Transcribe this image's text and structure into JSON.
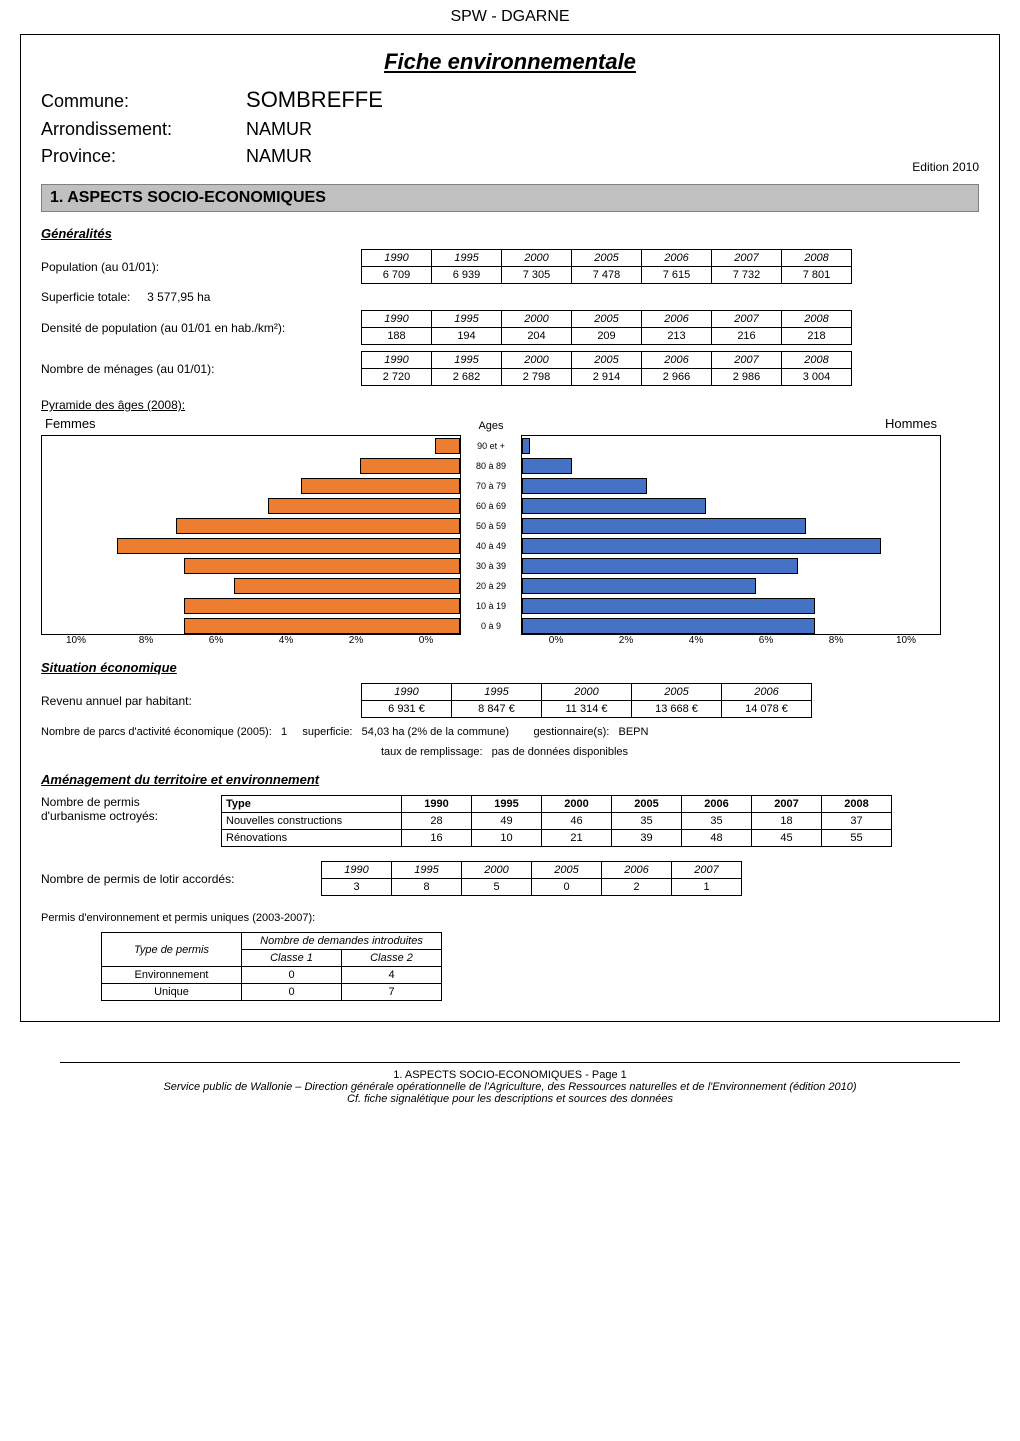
{
  "header": {
    "agency": "SPW - DGARNE",
    "title": "Fiche environnementale",
    "commune_label": "Commune:",
    "commune": "SOMBREFFE",
    "arrondissement_label": "Arrondissement:",
    "arrondissement": "NAMUR",
    "province_label": "Province:",
    "province": "NAMUR",
    "edition": "Edition  2010"
  },
  "section1": {
    "title": "1. ASPECTS SOCIO-ECONOMIQUES",
    "generalites": {
      "heading": "Généralités",
      "population_label": "Population (au 01/01):",
      "population": {
        "years": [
          "1990",
          "1995",
          "2000",
          "2005",
          "2006",
          "2007",
          "2008"
        ],
        "values": [
          "6 709",
          "6 939",
          "7 305",
          "7 478",
          "7 615",
          "7 732",
          "7 801"
        ]
      },
      "superficie_label": "Superficie totale:",
      "superficie_value": "3 577,95 ha",
      "densite_label": "Densité de population (au 01/01 en hab./km²):",
      "densite": {
        "years": [
          "1990",
          "1995",
          "2000",
          "2005",
          "2006",
          "2007",
          "2008"
        ],
        "values": [
          "188",
          "194",
          "204",
          "209",
          "213",
          "216",
          "218"
        ]
      },
      "menages_label": "Nombre de ménages (au 01/01):",
      "menages": {
        "years": [
          "1990",
          "1995",
          "2000",
          "2005",
          "2006",
          "2007",
          "2008"
        ],
        "values": [
          "2 720",
          "2 682",
          "2 798",
          "2 914",
          "2 966",
          "2 986",
          "3 004"
        ]
      },
      "pyramide_label": "Pyramide des âges (2008):",
      "pyramide": {
        "femmes_label": "Femmes",
        "hommes_label": "Hommes",
        "ages_label": "Ages",
        "age_groups": [
          "90 et +",
          "80 à 89",
          "70 à 79",
          "60 à 69",
          "50 à 59",
          "40 à 49",
          "30 à 39",
          "20 à 29",
          "10 à 19",
          "0 à 9"
        ],
        "femmes_pct": [
          0.6,
          2.4,
          3.8,
          4.6,
          6.8,
          8.2,
          6.6,
          5.4,
          6.6,
          6.6
        ],
        "hommes_pct": [
          0.2,
          1.2,
          3.0,
          4.4,
          6.8,
          8.6,
          6.6,
          5.6,
          7.0,
          7.0
        ],
        "axis_ticks": [
          "0%",
          "2%",
          "4%",
          "6%",
          "8%",
          "10%"
        ],
        "axis_ticks_left": [
          "10%",
          "8%",
          "6%",
          "4%",
          "2%",
          "0%"
        ],
        "femmes_color": "#ed7d31",
        "hommes_color": "#4472c4",
        "border_color": "#000000",
        "max_pct": 10
      }
    },
    "situation_eco": {
      "heading": "Situation économique",
      "revenu_label": "Revenu annuel par habitant:",
      "revenu": {
        "years": [
          "1990",
          "1995",
          "2000",
          "2005",
          "2006"
        ],
        "values": [
          "6 931 €",
          "8 847 €",
          "11 314 €",
          "13 668 €",
          "14 078 €"
        ]
      },
      "parcs_prefix": "Nombre de parcs d'activité économique (2005):",
      "parcs_count": "1",
      "superficie_label": "superficie:",
      "superficie_value": "54,03 ha (2% de la commune)",
      "gestionnaire_label": "gestionnaire(s):",
      "gestionnaire_value": "BEPN",
      "taux_label": "taux de remplissage:",
      "taux_value": "pas de données disponibles"
    },
    "amenagement": {
      "heading": "Aménagement du territoire et environnement",
      "permis_lines": [
        "Nombre de permis",
        "d'urbanisme octroyés:"
      ],
      "permis_table": {
        "type_header": "Type",
        "years": [
          "1990",
          "1995",
          "2000",
          "2005",
          "2006",
          "2007",
          "2008"
        ],
        "rows": [
          {
            "type": "Nouvelles constructions",
            "values": [
              "28",
              "49",
              "46",
              "35",
              "35",
              "18",
              "37"
            ]
          },
          {
            "type": "Rénovations",
            "values": [
              "16",
              "10",
              "21",
              "39",
              "48",
              "45",
              "55"
            ]
          }
        ]
      },
      "lotir_label": "Nombre de permis de lotir accordés:",
      "lotir": {
        "years": [
          "1990",
          "1995",
          "2000",
          "2005",
          "2006",
          "2007"
        ],
        "values": [
          "3",
          "8",
          "5",
          "0",
          "2",
          "1"
        ]
      },
      "env_label": "Permis d'environnement et permis uniques (2003-2007):",
      "env_table": {
        "type_header": "Type de permis",
        "demandes_header": "Nombre de demandes introduites",
        "classe1": "Classe 1",
        "classe2": "Classe 2",
        "rows": [
          {
            "type": "Environnement",
            "c1": "0",
            "c2": "4"
          },
          {
            "type": "Unique",
            "c1": "0",
            "c2": "7"
          }
        ]
      }
    }
  },
  "footer": {
    "page_line": "1. ASPECTS SOCIO-ECONOMIQUES - Page 1",
    "service_line": "Service public de Wallonie – Direction générale opérationnelle de l'Agriculture, des Ressources naturelles et de l'Environnement (édition 2010)",
    "cf_line": "Cf. fiche signalétique pour les descriptions et sources des données"
  }
}
